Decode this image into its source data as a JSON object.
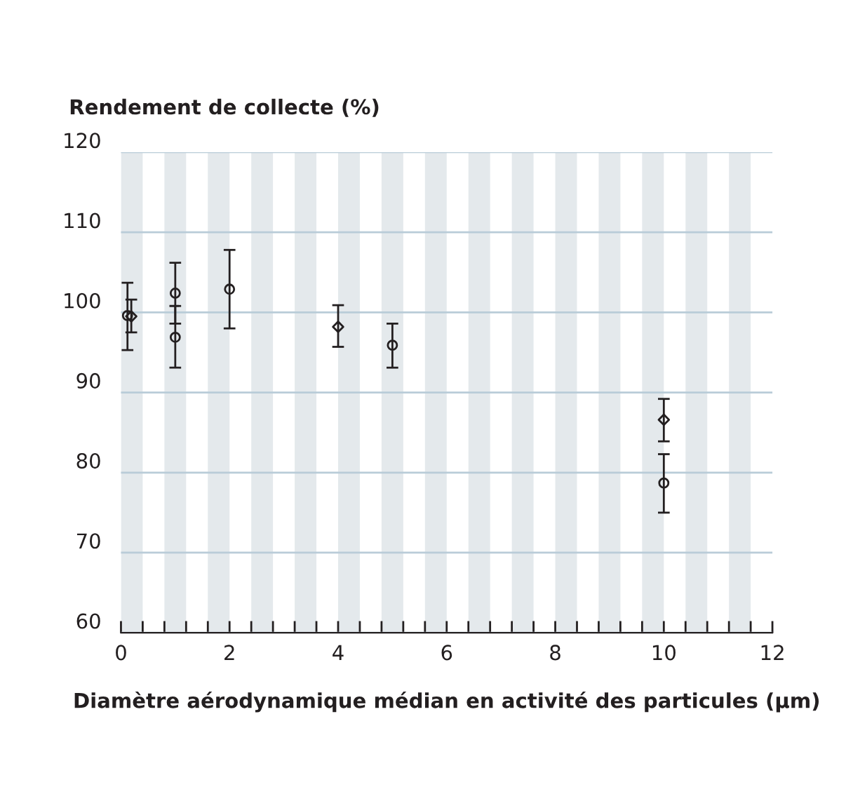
{
  "chart_data": {
    "type": "scatter",
    "ylabel": "Rendement de collecte (%)",
    "xlabel": "Diamètre aérodynamique médian en activité des particules (μm)",
    "series": [
      {
        "color": "#231f20",
        "marker": "circle",
        "x": [
          0.12,
          1,
          1,
          2,
          5,
          10
        ],
        "values": [
          99.6,
          102.4,
          96.9,
          102.9,
          95.9,
          78.7
        ],
        "errors": [
          [
            95.3,
            103.7
          ],
          [
            98.6,
            106.2
          ],
          [
            93.1,
            100.8
          ],
          [
            98.0,
            107.8
          ],
          [
            93.1,
            98.6
          ],
          [
            75.0,
            82.3
          ]
        ]
      },
      {
        "color": "#231f20",
        "marker": "diamond",
        "x": [
          0.19,
          4,
          10
        ],
        "values": [
          99.5,
          98.2,
          86.6
        ],
        "errors": [
          [
            97.5,
            101.6
          ],
          [
            95.7,
            100.9
          ],
          [
            83.9,
            89.2
          ]
        ]
      }
    ],
    "xlim": [
      0,
      12
    ],
    "xticks": [
      0,
      {
        "value": 0.4,
        "label": null
      },
      {
        "value": 0.8,
        "label": null
      },
      {
        "value": 1.2,
        "label": null
      },
      {
        "value": 1.6,
        "label": null
      },
      2,
      {
        "value": 2.4,
        "label": null
      },
      {
        "value": 2.8,
        "label": null
      },
      {
        "value": 3.2,
        "label": null
      },
      {
        "value": 3.6,
        "label": null
      },
      4,
      {
        "value": 4.4,
        "label": null
      },
      {
        "value": 4.8,
        "label": null
      },
      {
        "value": 5.2,
        "label": null
      },
      {
        "value": 5.6,
        "label": null
      },
      6,
      {
        "value": 6.4,
        "label": null
      },
      {
        "value": 6.8,
        "label": null
      },
      {
        "value": 7.2,
        "label": null
      },
      {
        "value": 7.6,
        "label": null
      },
      8,
      {
        "value": 8.4,
        "label": null
      },
      {
        "value": 8.8,
        "label": null
      },
      {
        "value": 9.2,
        "label": null
      },
      {
        "value": 9.6,
        "label": null
      },
      10,
      {
        "value": 10.4,
        "label": null
      },
      {
        "value": 10.8,
        "label": null
      },
      {
        "value": 11.2,
        "label": null
      },
      {
        "value": 11.6,
        "label": null
      },
      12
    ],
    "ylim": [
      60,
      120
    ],
    "yticks": [
      60,
      70,
      80,
      90,
      100,
      110,
      120
    ],
    "grid": "y",
    "bands": [
      {
        "axis": "x",
        "from": 0,
        "to": 0.4,
        "color": "#e4e9ec"
      },
      {
        "axis": "x",
        "from": 0.8,
        "to": 1.2,
        "color": "#e4e9ec"
      },
      {
        "axis": "x",
        "from": 1.6,
        "to": 2.0,
        "color": "#e4e9ec"
      },
      {
        "axis": "x",
        "from": 2.4,
        "to": 2.8,
        "color": "#e4e9ec"
      },
      {
        "axis": "x",
        "from": 3.2,
        "to": 3.6,
        "color": "#e4e9ec"
      },
      {
        "axis": "x",
        "from": 4.0,
        "to": 4.4,
        "color": "#e4e9ec"
      },
      {
        "axis": "x",
        "from": 4.8,
        "to": 5.2,
        "color": "#e4e9ec"
      },
      {
        "axis": "x",
        "from": 5.6,
        "to": 6.0,
        "color": "#e4e9ec"
      },
      {
        "axis": "x",
        "from": 6.4,
        "to": 6.8,
        "color": "#e4e9ec"
      },
      {
        "axis": "x",
        "from": 7.2,
        "to": 7.6,
        "color": "#e4e9ec"
      },
      {
        "axis": "x",
        "from": 8.0,
        "to": 8.4,
        "color": "#e4e9ec"
      },
      {
        "axis": "x",
        "from": 8.8,
        "to": 9.2,
        "color": "#e4e9ec"
      },
      {
        "axis": "x",
        "from": 9.6,
        "to": 10.0,
        "color": "#e4e9ec"
      },
      {
        "axis": "x",
        "from": 10.4,
        "to": 10.8,
        "color": "#e4e9ec"
      },
      {
        "axis": "x",
        "from": 11.2,
        "to": 11.6,
        "color": "#e4e9ec"
      }
    ]
  }
}
